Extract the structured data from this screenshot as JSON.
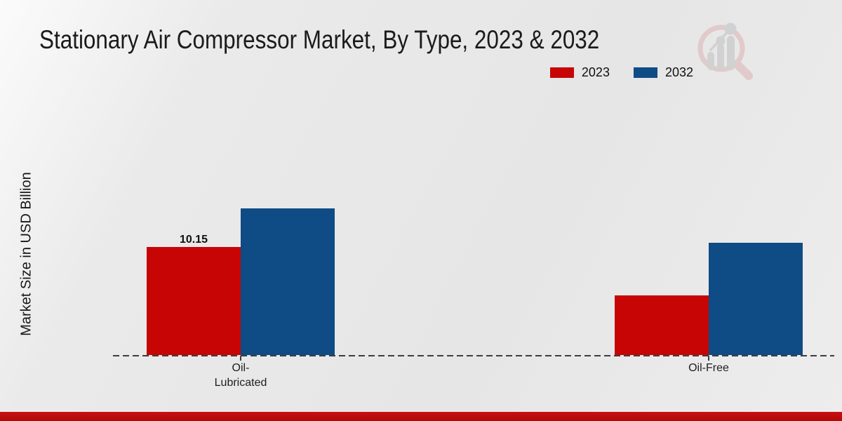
{
  "chart_data": {
    "type": "bar",
    "title": "Stationary Air Compressor Market, By Type, 2023 & 2032",
    "xlabel": "",
    "ylabel": "Market Size in USD Billion",
    "categories": [
      "Oil-\nLubricated",
      "Oil-Free"
    ],
    "series": [
      {
        "name": "2023",
        "color": "#c70505",
        "values": [
          10.15,
          5.6
        ],
        "data_labels": [
          "10.15",
          ""
        ]
      },
      {
        "name": "2032",
        "color": "#0f4b84",
        "values": [
          13.8,
          10.55
        ],
        "data_labels": [
          "",
          ""
        ]
      }
    ],
    "legend_position": "top-right",
    "grid": false,
    "baseline_style": "dashed",
    "y_axis_ticks_visible": false
  },
  "branding": {
    "logo_icon": "bar-chart-magnifier-watermark",
    "bottom_accent_color": "#bb0909"
  },
  "colors": {
    "series_2023": "#c70505",
    "series_2032": "#0f4b84",
    "baseline": "#3d3d3d",
    "title_text": "#1b1b1b"
  }
}
